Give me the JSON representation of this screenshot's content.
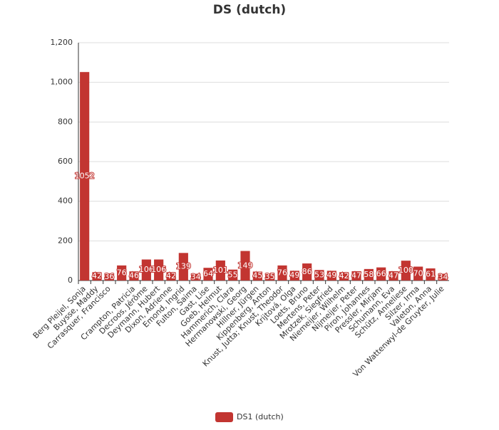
{
  "chart_data": {
    "type": "bar",
    "title": "DS (dutch)",
    "categories": [
      "Berg Pleijel, Sonja",
      "Buysse, Maddy",
      "Carrasquer, Francisco",
      null,
      "Crampton, Patricia",
      "Decroos, Jérôme",
      "Deymann, Hubert",
      "Dixon, Adrienne",
      "Emond, Ingrid",
      "Fulton, Saima",
      "Gast, Lise",
      "Goeb, Helmut",
      "Hammerich, Clara",
      "Hermanowski, Georg",
      "Hillner, Jürgen",
      "Kippenberg, Anton",
      "Knust, Jutta; Knust, Theodor",
      "Krijtová, Olga",
      "Loets, Bruno",
      "Mertens, Peter",
      "Mrotzek, Siegfried",
      "Niemeijer, Wilhelm",
      "Nijmeijer, Peter",
      "Piron, Johannes",
      "Pressler, Mirjam",
      "Schumann, Eva",
      "Schütz, Anneliese",
      "Silzer, Irma",
      "Valeton, Anna",
      "Von Wattenwyl-de Gruyter, Julie"
    ],
    "series": [
      {
        "name": "DS1 (dutch)",
        "color": "#c23531",
        "values": [
          1052,
          42,
          36,
          76,
          46,
          106,
          106,
          42,
          139,
          34,
          64,
          101,
          55,
          149,
          45,
          35,
          76,
          49,
          86,
          53,
          49,
          42,
          47,
          58,
          66,
          47,
          100,
          70,
          61,
          34
        ]
      }
    ],
    "ylim": [
      0,
      1200
    ],
    "yticks": [
      0,
      200,
      400,
      600,
      800,
      {
        "value": 1000,
        "label": "1,000"
      },
      {
        "value": 1200,
        "label": "1,200"
      }
    ],
    "grid": true,
    "legend": "bottom"
  }
}
